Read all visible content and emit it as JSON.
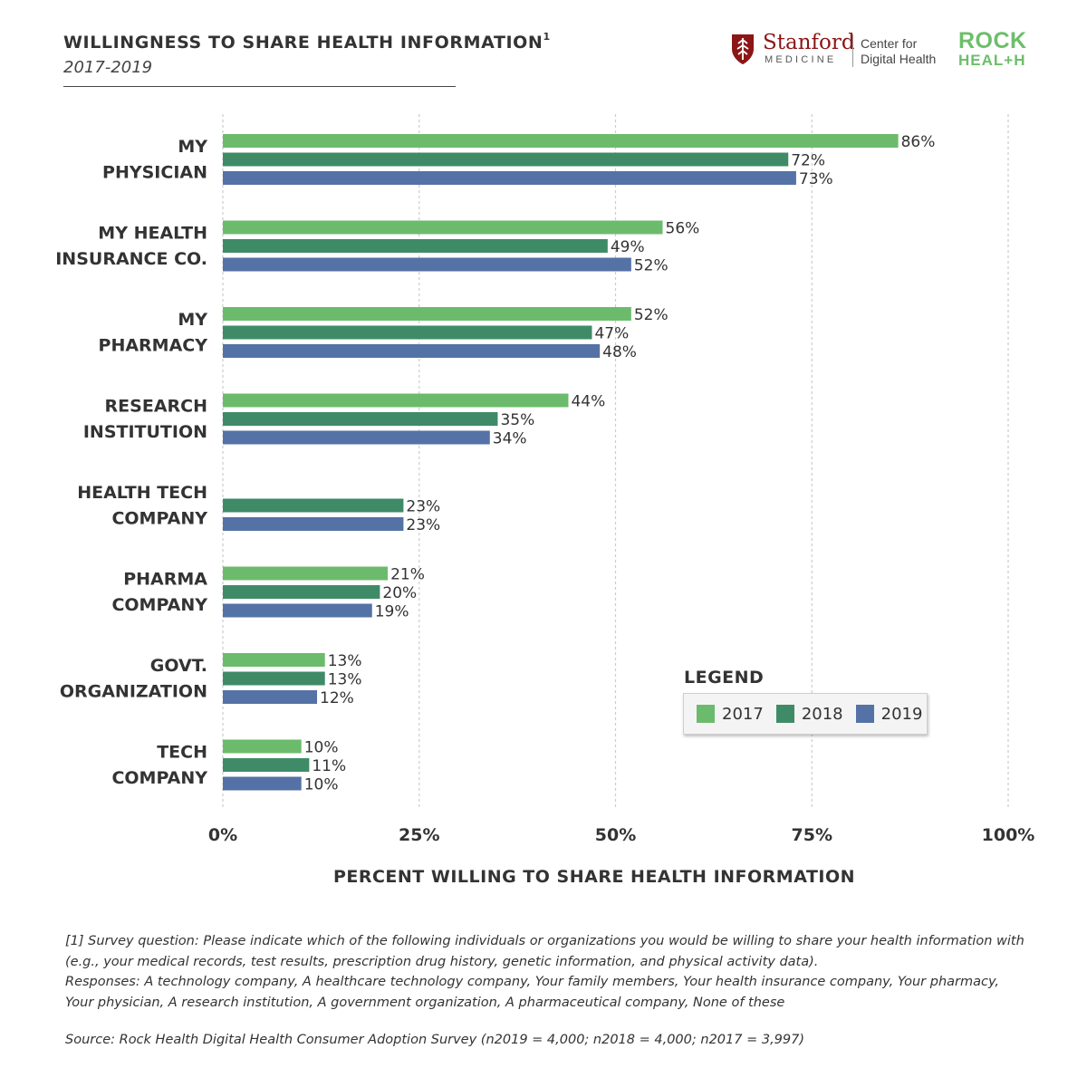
{
  "header": {
    "title": "WILLINGNESS TO SHARE HEALTH INFORMATION",
    "title_sup": "1",
    "subtitle": "2017-2019"
  },
  "logos": {
    "stanford": "Stanford",
    "stanford_sub": "MEDICINE",
    "center_line1": "Center for",
    "center_line2": "Digital Health",
    "rock_line1": "ROCK",
    "rock_line2": "HEAL+H"
  },
  "colors": {
    "2017": "#6cbb6c",
    "2018": "#3f8b68",
    "2019": "#5472a5",
    "grid": "#cccccc",
    "text": "#333333"
  },
  "legend": {
    "title": "LEGEND",
    "items": [
      "2017",
      "2018",
      "2019"
    ]
  },
  "chart_data": {
    "type": "bar",
    "orientation": "horizontal",
    "categories": [
      [
        "MY",
        "PHYSICIAN"
      ],
      [
        "MY HEALTH",
        "INSURANCE CO."
      ],
      [
        "MY",
        "PHARMACY"
      ],
      [
        "RESEARCH",
        "INSTITUTION"
      ],
      [
        "HEALTH TECH",
        "COMPANY"
      ],
      [
        "PHARMA",
        "COMPANY"
      ],
      [
        "GOVT.",
        "ORGANIZATION"
      ],
      [
        "TECH",
        "COMPANY"
      ]
    ],
    "series": [
      {
        "name": "2017",
        "values": [
          86,
          56,
          52,
          44,
          null,
          21,
          13,
          10
        ]
      },
      {
        "name": "2018",
        "values": [
          72,
          49,
          47,
          35,
          23,
          20,
          13,
          11
        ]
      },
      {
        "name": "2019",
        "values": [
          73,
          52,
          48,
          34,
          23,
          19,
          12,
          10
        ]
      }
    ],
    "xlim": [
      0,
      100
    ],
    "xticks": [
      "0%",
      "25%",
      "50%",
      "75%",
      "100%"
    ],
    "xlabel": "PERCENT WILLING TO SHARE HEALTH INFORMATION",
    "value_suffix": "%",
    "grid": true,
    "legend_position": "bottom-right"
  },
  "footnote": {
    "line1": "[1] Survey question: Please indicate which of the following individuals or organizations you would be willing to share your health information with",
    "line2": "(e.g., your medical records, test results, prescription drug history, genetic information, and physical activity data).",
    "line3": "Responses: A technology company, A healthcare technology company, Your family members, Your health insurance company, Your pharmacy,",
    "line4": "Your physician, A research institution, A government organization, A pharmaceutical company, None of these"
  },
  "source": "Source: Rock Health Digital Health Consumer Adoption Survey (n2019 = 4,000; n2018 = 4,000; n2017 = 3,997)"
}
